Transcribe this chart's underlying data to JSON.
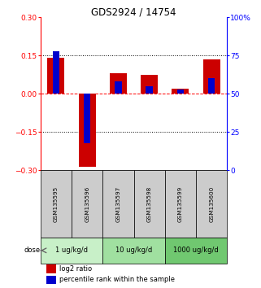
{
  "title": "GDS2924 / 14754",
  "samples": [
    "GSM135595",
    "GSM135596",
    "GSM135597",
    "GSM135598",
    "GSM135599",
    "GSM135600"
  ],
  "log2_ratio": [
    0.142,
    -0.285,
    0.082,
    0.075,
    0.02,
    0.135
  ],
  "percentile_rank": [
    78,
    18,
    58,
    55,
    53,
    60
  ],
  "dose_groups": [
    {
      "label": "1 ug/kg/d",
      "samples": [
        0,
        1
      ],
      "color": "#c8f0c8"
    },
    {
      "label": "10 ug/kg/d",
      "samples": [
        2,
        3
      ],
      "color": "#a0e0a0"
    },
    {
      "label": "1000 ug/kg/d",
      "samples": [
        4,
        5
      ],
      "color": "#70c870"
    }
  ],
  "left_ylim": [
    -0.3,
    0.3
  ],
  "right_ylim": [
    0,
    100
  ],
  "left_yticks": [
    -0.3,
    -0.15,
    0,
    0.15,
    0.3
  ],
  "right_yticks": [
    0,
    25,
    50,
    75,
    100
  ],
  "right_yticklabels": [
    "0",
    "25",
    "50",
    "75",
    "100%"
  ],
  "hlines_dotted": [
    -0.15,
    0.15
  ],
  "hline_dashed": 0,
  "red_color": "#cc0000",
  "blue_color": "#0000cc",
  "sample_box_color": "#cccccc",
  "background_color": "#ffffff"
}
